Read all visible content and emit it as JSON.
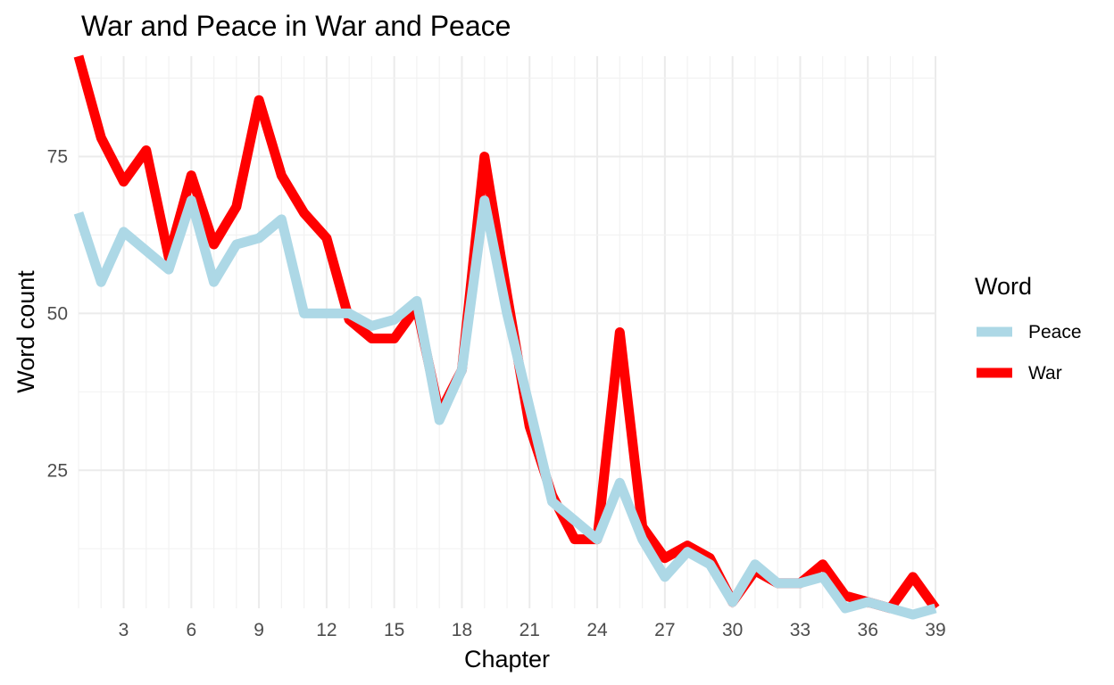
{
  "chart_data": {
    "type": "line",
    "title": "War and Peace in War and Peace",
    "xlabel": "Chapter",
    "ylabel": "Word count",
    "xlim": [
      1,
      39
    ],
    "ylim": [
      3,
      91
    ],
    "x_ticks": [
      3,
      6,
      9,
      12,
      15,
      18,
      21,
      24,
      27,
      30,
      33,
      36,
      39
    ],
    "y_ticks": [
      25,
      50,
      75
    ],
    "grid": true,
    "legend": {
      "title": "Word",
      "position": "right"
    },
    "x": [
      1,
      2,
      3,
      4,
      5,
      6,
      7,
      8,
      9,
      10,
      11,
      12,
      13,
      14,
      15,
      16,
      17,
      18,
      19,
      20,
      21,
      22,
      23,
      24,
      25,
      26,
      27,
      28,
      29,
      30,
      31,
      32,
      33,
      34,
      35,
      36,
      37,
      38,
      39
    ],
    "series": [
      {
        "name": "War",
        "color": "#ff0000",
        "values": [
          91,
          78,
          71,
          76,
          59,
          72,
          61,
          67,
          84,
          72,
          66,
          62,
          49,
          46,
          46,
          51,
          34,
          41,
          75,
          53,
          32,
          21,
          14,
          14,
          47,
          16,
          11,
          13,
          11,
          4,
          9,
          7,
          7,
          10,
          5,
          4,
          3,
          8,
          3
        ]
      },
      {
        "name": "Peace",
        "color": "#add8e6",
        "values": [
          66,
          55,
          63,
          60,
          57,
          68,
          55,
          61,
          62,
          65,
          50,
          50,
          50,
          48,
          49,
          52,
          33,
          41,
          68,
          50,
          35,
          20,
          17,
          14,
          23,
          14,
          8,
          12,
          10,
          4,
          10,
          7,
          7,
          8,
          3,
          4,
          3,
          2,
          3
        ]
      }
    ]
  }
}
